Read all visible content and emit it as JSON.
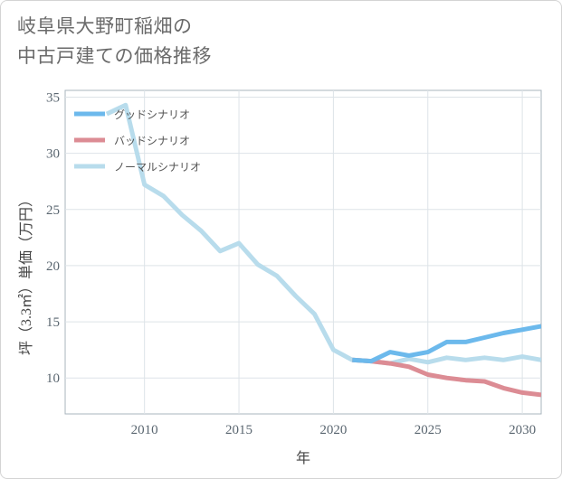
{
  "title": {
    "line1": "岐阜県大野町稲畑の",
    "line2": "中古戸建ての価格推移"
  },
  "chart_data": {
    "type": "line",
    "xlabel": "年",
    "ylabel": "坪（3.3㎡）単価（万円）",
    "xlim": [
      2005.8,
      2031
    ],
    "ylim": [
      6.8,
      35.6
    ],
    "xticks": [
      2010,
      2015,
      2020,
      2025,
      2030
    ],
    "yticks": [
      10,
      15,
      20,
      25,
      30,
      35
    ],
    "grid": true,
    "legend_position": "top-left",
    "series": [
      {
        "name": "グッドシナリオ",
        "color": "#6cb9ec",
        "x": [
          2021,
          2022,
          2023,
          2024,
          2025,
          2026,
          2027,
          2028,
          2029,
          2030,
          2031
        ],
        "y": [
          11.6,
          11.5,
          12.3,
          12.0,
          12.3,
          13.2,
          13.2,
          13.6,
          14.0,
          14.3,
          14.6
        ]
      },
      {
        "name": "バッドシナリオ",
        "color": "#dc8c94",
        "x": [
          2021,
          2022,
          2023,
          2024,
          2025,
          2026,
          2027,
          2028,
          2029,
          2030,
          2031
        ],
        "y": [
          11.6,
          11.5,
          11.3,
          11.0,
          10.3,
          10.0,
          9.8,
          9.7,
          9.1,
          8.7,
          8.5
        ]
      },
      {
        "name": "ノーマルシナリオ",
        "color": "#b8dcec",
        "x": [
          2008,
          2009,
          2010,
          2011,
          2012,
          2013,
          2014,
          2015,
          2016,
          2017,
          2018,
          2019,
          2020,
          2021,
          2022,
          2023,
          2024,
          2025,
          2026,
          2027,
          2028,
          2029,
          2030,
          2031
        ],
        "y": [
          33.5,
          34.3,
          27.2,
          26.2,
          24.5,
          23.1,
          21.3,
          22.0,
          20.1,
          19.1,
          17.3,
          15.7,
          12.5,
          11.6,
          11.5,
          11.3,
          11.7,
          11.4,
          11.8,
          11.6,
          11.8,
          11.6,
          11.9,
          11.6
        ]
      }
    ]
  }
}
